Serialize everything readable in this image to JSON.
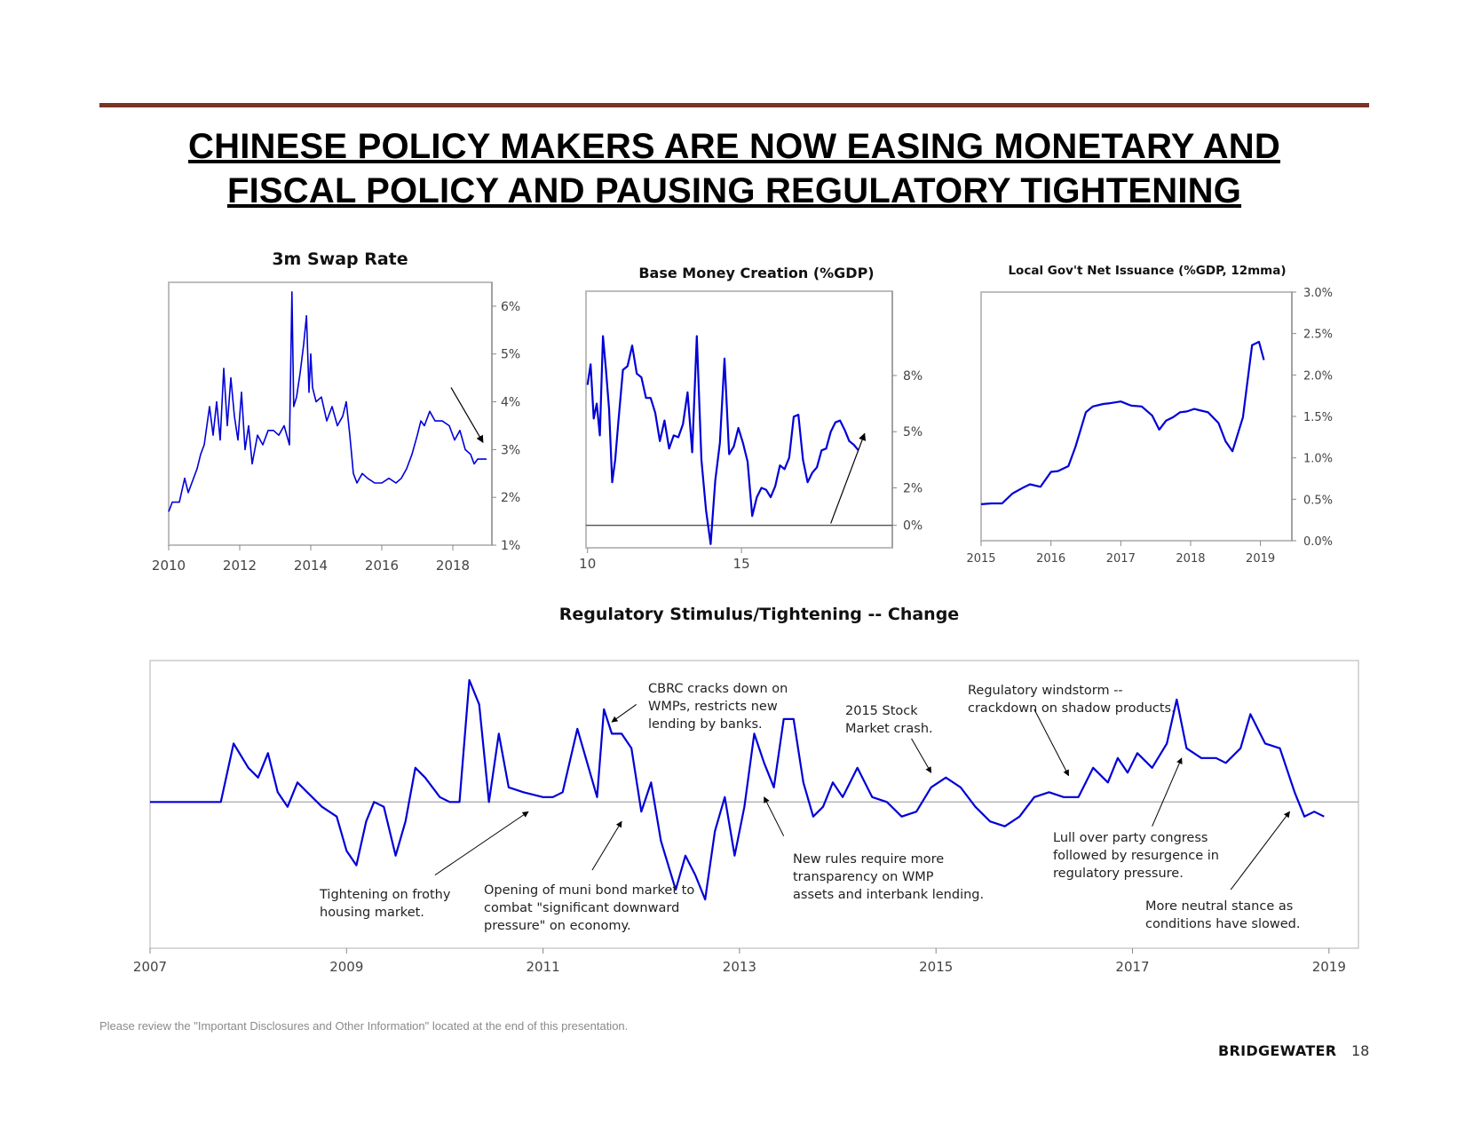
{
  "header": {
    "title_line1": "CHINESE POLICY MAKERS ARE NOW EASING MONETARY AND",
    "title_line2": "FISCAL POLICY AND PAUSING REGULATORY TIGHTENING",
    "rule_color": "#7b3326"
  },
  "footer": {
    "disclaimer": "Please review the \"Important Disclosures and Other Information\" located at the end of this presentation.",
    "logo": "BRIDGEWATER",
    "page_number": "18"
  },
  "colors": {
    "series": "#0000d8",
    "axis": "#888888",
    "zero_line": "#555555"
  },
  "chart_data": [
    {
      "id": "swap",
      "type": "line",
      "title": "3m Swap Rate",
      "xlabel": "",
      "ylabel": "",
      "xlim": [
        2010,
        2019.1
      ],
      "ylim": [
        1,
        6.5
      ],
      "x_ticks": [
        "2010",
        "2012",
        "2014",
        "2016",
        "2018"
      ],
      "x_tick_values": [
        2010,
        2012,
        2014,
        2016,
        2018
      ],
      "y_ticks": [
        "1%",
        "2%",
        "3%",
        "4%",
        "5%",
        "6%"
      ],
      "y_tick_values": [
        1,
        2,
        3,
        4,
        5,
        6
      ],
      "y_axis_side": "right",
      "series": [
        {
          "name": "3m Swap Rate",
          "x": [
            2010.0,
            2010.1,
            2010.3,
            2010.45,
            2010.55,
            2010.65,
            2010.8,
            2010.9,
            2011.0,
            2011.15,
            2011.25,
            2011.35,
            2011.45,
            2011.55,
            2011.65,
            2011.75,
            2011.85,
            2011.95,
            2012.05,
            2012.15,
            2012.25,
            2012.35,
            2012.5,
            2012.65,
            2012.8,
            2012.95,
            2013.1,
            2013.25,
            2013.4,
            2013.47,
            2013.52,
            2013.6,
            2013.7,
            2013.8,
            2013.88,
            2013.95,
            2014.0,
            2014.05,
            2014.15,
            2014.3,
            2014.45,
            2014.6,
            2014.75,
            2014.9,
            2015.0,
            2015.1,
            2015.2,
            2015.3,
            2015.45,
            2015.6,
            2015.8,
            2016.0,
            2016.2,
            2016.4,
            2016.55,
            2016.7,
            2016.85,
            2017.0,
            2017.1,
            2017.2,
            2017.35,
            2017.5,
            2017.7,
            2017.9,
            2018.05,
            2018.2,
            2018.35,
            2018.5,
            2018.6,
            2018.7,
            2018.8,
            2018.95
          ],
          "values": [
            1.7,
            1.9,
            1.9,
            2.4,
            2.1,
            2.3,
            2.6,
            2.9,
            3.1,
            3.9,
            3.3,
            4.0,
            3.2,
            4.7,
            3.5,
            4.5,
            3.7,
            3.2,
            4.2,
            3.0,
            3.5,
            2.7,
            3.3,
            3.1,
            3.4,
            3.4,
            3.3,
            3.5,
            3.1,
            6.3,
            3.9,
            4.1,
            4.6,
            5.2,
            5.8,
            4.2,
            5.0,
            4.3,
            4.0,
            4.1,
            3.6,
            3.9,
            3.5,
            3.7,
            4.0,
            3.3,
            2.5,
            2.3,
            2.5,
            2.4,
            2.3,
            2.3,
            2.4,
            2.3,
            2.4,
            2.6,
            2.9,
            3.3,
            3.6,
            3.5,
            3.8,
            3.6,
            3.6,
            3.5,
            3.2,
            3.4,
            3.0,
            2.9,
            2.7,
            2.8,
            2.8,
            2.8
          ]
        }
      ],
      "arrows": [
        {
          "from": [
            2017.95,
            4.3
          ],
          "to": [
            2018.85,
            3.15
          ]
        }
      ]
    },
    {
      "id": "base_money",
      "type": "line",
      "title": "Base Money Creation (%GDP)",
      "xlim": [
        2009.95,
        2019.9
      ],
      "ylim": [
        -1.2,
        12.5
      ],
      "x_ticks": [
        "10",
        "15"
      ],
      "x_tick_values": [
        2010,
        2015
      ],
      "y_ticks": [
        "0%",
        "2%",
        "5%",
        "8%"
      ],
      "y_tick_values": [
        0,
        2,
        5,
        8
      ],
      "y_axis_side": "right",
      "zero_line": true,
      "series": [
        {
          "name": "Base Money Creation",
          "x": [
            2010.0,
            2010.1,
            2010.2,
            2010.3,
            2010.4,
            2010.5,
            2010.6,
            2010.7,
            2010.8,
            2010.9,
            2011.0,
            2011.15,
            2011.3,
            2011.45,
            2011.6,
            2011.75,
            2011.9,
            2012.05,
            2012.2,
            2012.35,
            2012.5,
            2012.65,
            2012.8,
            2012.95,
            2013.1,
            2013.25,
            2013.4,
            2013.55,
            2013.7,
            2013.85,
            2014.0,
            2014.15,
            2014.3,
            2014.45,
            2014.6,
            2014.75,
            2014.9,
            2015.05,
            2015.2,
            2015.35,
            2015.5,
            2015.65,
            2015.8,
            2015.95,
            2016.1,
            2016.25,
            2016.4,
            2016.55,
            2016.7,
            2016.85,
            2017.0,
            2017.15,
            2017.3,
            2017.45,
            2017.6,
            2017.75,
            2017.9,
            2018.05,
            2018.2,
            2018.35,
            2018.5,
            2018.65,
            2018.8
          ],
          "values": [
            7.5,
            8.6,
            5.7,
            6.5,
            4.8,
            10.1,
            8.3,
            6.2,
            2.3,
            3.5,
            5.5,
            8.3,
            8.5,
            9.6,
            8.1,
            7.9,
            6.8,
            6.8,
            6.0,
            4.5,
            5.6,
            4.1,
            4.8,
            4.7,
            5.4,
            7.1,
            3.9,
            10.1,
            3.5,
            0.8,
            -1.0,
            2.4,
            4.4,
            8.9,
            3.8,
            4.2,
            5.2,
            4.4,
            3.4,
            0.5,
            1.5,
            2.0,
            1.9,
            1.5,
            2.1,
            3.2,
            3.0,
            3.6,
            5.8,
            5.9,
            3.5,
            2.3,
            2.8,
            3.1,
            4.0,
            4.1,
            5.0,
            5.5,
            5.6,
            5.1,
            4.5,
            4.3,
            4.0
          ]
        }
      ],
      "arrows": [
        {
          "from": [
            2017.9,
            0.1
          ],
          "to": [
            2019.0,
            4.9
          ]
        }
      ]
    },
    {
      "id": "local_gov",
      "type": "line",
      "title": "Local Gov't Net Issuance (%GDP, 12mma)",
      "xlim": [
        2015,
        2019.45
      ],
      "ylim": [
        0,
        3.0
      ],
      "x_ticks": [
        "2015",
        "2016",
        "2017",
        "2018",
        "2019"
      ],
      "x_tick_values": [
        2015,
        2016,
        2017,
        2018,
        2019
      ],
      "y_ticks": [
        "0.0%",
        "0.5%",
        "1.0%",
        "1.5%",
        "2.0%",
        "2.5%",
        "3.0%"
      ],
      "y_tick_values": [
        0,
        0.5,
        1.0,
        1.5,
        2.0,
        2.5,
        3.0
      ],
      "y_axis_side": "right",
      "series": [
        {
          "name": "Local Gov't Net Issuance",
          "x": [
            2015.0,
            2015.15,
            2015.3,
            2015.45,
            2015.6,
            2015.7,
            2015.85,
            2016.0,
            2016.1,
            2016.25,
            2016.35,
            2016.5,
            2016.6,
            2016.75,
            2016.85,
            2017.0,
            2017.15,
            2017.3,
            2017.45,
            2017.55,
            2017.65,
            2017.75,
            2017.85,
            2017.95,
            2018.05,
            2018.15,
            2018.25,
            2018.4,
            2018.5,
            2018.6,
            2018.75,
            2018.88,
            2018.98,
            2019.05
          ],
          "values": [
            0.44,
            0.45,
            0.45,
            0.57,
            0.64,
            0.68,
            0.65,
            0.83,
            0.84,
            0.9,
            1.13,
            1.55,
            1.62,
            1.65,
            1.66,
            1.68,
            1.63,
            1.62,
            1.51,
            1.34,
            1.45,
            1.49,
            1.55,
            1.56,
            1.59,
            1.57,
            1.55,
            1.42,
            1.2,
            1.08,
            1.49,
            2.36,
            2.4,
            2.18
          ]
        }
      ]
    },
    {
      "id": "regulatory",
      "type": "line",
      "title": "Regulatory Stimulus/Tightening -- Change",
      "xlim": [
        2007,
        2019.3
      ],
      "ylim": [
        -1.5,
        1.45
      ],
      "x_ticks": [
        "2007",
        "2009",
        "2011",
        "2013",
        "2015",
        "2017",
        "2019"
      ],
      "x_tick_values": [
        2007,
        2009,
        2011,
        2013,
        2015,
        2017,
        2019
      ],
      "zero_line": true,
      "series": [
        {
          "name": "Regulatory Change",
          "x": [
            2007.0,
            2007.72,
            2007.85,
            2008.0,
            2008.1,
            2008.2,
            2008.3,
            2008.4,
            2008.5,
            2008.6,
            2008.75,
            2008.9,
            2009.0,
            2009.1,
            2009.2,
            2009.28,
            2009.38,
            2009.5,
            2009.6,
            2009.7,
            2009.8,
            2009.95,
            2010.05,
            2010.15,
            2010.25,
            2010.35,
            2010.45,
            2010.55,
            2010.65,
            2010.8,
            2011.0,
            2011.1,
            2011.2,
            2011.35,
            2011.45,
            2011.55,
            2011.62,
            2011.7,
            2011.8,
            2011.9,
            2012.0,
            2012.1,
            2012.2,
            2012.35,
            2012.45,
            2012.55,
            2012.65,
            2012.75,
            2012.85,
            2012.95,
            2013.05,
            2013.15,
            2013.25,
            2013.35,
            2013.45,
            2013.55,
            2013.65,
            2013.75,
            2013.85,
            2013.95,
            2014.05,
            2014.2,
            2014.35,
            2014.5,
            2014.65,
            2014.8,
            2014.95,
            2015.1,
            2015.25,
            2015.4,
            2015.55,
            2015.7,
            2015.85,
            2016.0,
            2016.15,
            2016.3,
            2016.45,
            2016.6,
            2016.75,
            2016.85,
            2016.95,
            2017.05,
            2017.2,
            2017.35,
            2017.45,
            2017.55,
            2017.7,
            2017.85,
            2017.95,
            2018.1,
            2018.2,
            2018.35,
            2018.5,
            2018.65,
            2018.75,
            2018.85,
            2018.95
          ],
          "values": [
            0.0,
            0.0,
            0.6,
            0.35,
            0.25,
            0.5,
            0.1,
            -0.05,
            0.2,
            0.1,
            -0.05,
            -0.15,
            -0.5,
            -0.65,
            -0.2,
            0.0,
            -0.05,
            -0.55,
            -0.2,
            0.35,
            0.25,
            0.05,
            0.0,
            0.0,
            1.25,
            1.0,
            0.0,
            0.7,
            0.15,
            0.1,
            0.05,
            0.05,
            0.1,
            0.75,
            0.4,
            0.05,
            0.95,
            0.7,
            0.7,
            0.55,
            -0.1,
            0.2,
            -0.4,
            -0.9,
            -0.55,
            -0.75,
            -1.0,
            -0.3,
            0.05,
            -0.55,
            -0.05,
            0.7,
            0.4,
            0.15,
            0.85,
            0.85,
            0.2,
            -0.15,
            -0.05,
            0.2,
            0.05,
            0.35,
            0.05,
            0.0,
            -0.15,
            -0.1,
            0.15,
            0.25,
            0.15,
            -0.05,
            -0.2,
            -0.25,
            -0.15,
            0.05,
            0.1,
            0.05,
            0.05,
            0.35,
            0.2,
            0.45,
            0.3,
            0.5,
            0.35,
            0.6,
            1.05,
            0.55,
            0.45,
            0.45,
            0.4,
            0.55,
            0.9,
            0.6,
            0.55,
            0.1,
            -0.15,
            -0.1,
            -0.15
          ]
        }
      ],
      "annotations": [
        {
          "lines": [
            "Tightening on frothy",
            "housing market."
          ],
          "arrow_from": [
            2009.9,
            -0.75
          ],
          "arrow_to": [
            2010.85,
            -0.1
          ]
        },
        {
          "lines": [
            "Opening of muni bond market to",
            "combat \"significant downward",
            "pressure\" on economy."
          ],
          "arrow_from": [
            2011.5,
            -0.7
          ],
          "arrow_to": [
            2011.8,
            -0.2
          ]
        },
        {
          "lines": [
            "CBRC cracks down on",
            "WMPs, restricts new",
            "lending by banks."
          ],
          "arrow_from": [
            2011.95,
            1.0
          ],
          "arrow_to": [
            2011.7,
            0.82
          ]
        },
        {
          "lines": [
            "New rules require more",
            "transparency on WMP",
            "assets and interbank lending."
          ],
          "arrow_from": [
            2013.45,
            -0.35
          ],
          "arrow_to": [
            2013.25,
            0.05
          ]
        },
        {
          "lines": [
            "2015 Stock",
            "Market crash."
          ],
          "arrow_from": [
            2014.75,
            0.65
          ],
          "arrow_to": [
            2014.95,
            0.3
          ]
        },
        {
          "lines": [
            "Regulatory windstorm --",
            "crackdown on shadow products."
          ],
          "arrow_from": [
            2016.0,
            0.95
          ],
          "arrow_to": [
            2016.35,
            0.27
          ]
        },
        {
          "lines": [
            "Lull over party congress",
            "followed by resurgence in",
            "regulatory pressure."
          ],
          "arrow_from": [
            2017.2,
            -0.25
          ],
          "arrow_to": [
            2017.5,
            0.45
          ]
        },
        {
          "lines": [
            "More neutral stance as",
            "conditions have slowed."
          ],
          "arrow_from": [
            2018.0,
            -0.9
          ],
          "arrow_to": [
            2018.6,
            -0.1
          ]
        }
      ]
    }
  ]
}
